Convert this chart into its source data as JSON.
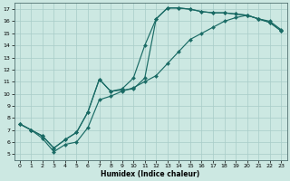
{
  "bg_color": "#cce8e2",
  "grid_color": "#a8ccc8",
  "line_color": "#1a6b65",
  "xlabel": "Humidex (Indice chaleur)",
  "xlim": [
    -0.5,
    23.5
  ],
  "ylim": [
    4.5,
    17.5
  ],
  "xticks": [
    0,
    1,
    2,
    3,
    4,
    5,
    6,
    7,
    8,
    9,
    10,
    11,
    12,
    13,
    14,
    15,
    16,
    17,
    18,
    19,
    20,
    21,
    22,
    23
  ],
  "yticks": [
    5,
    6,
    7,
    8,
    9,
    10,
    11,
    12,
    13,
    14,
    15,
    16,
    17
  ],
  "line1_x": [
    0,
    1,
    2,
    3,
    4,
    5,
    6,
    7,
    8,
    9,
    10,
    11,
    12,
    13,
    14,
    15,
    16,
    17,
    18,
    19,
    20,
    21,
    22,
    23
  ],
  "line1_y": [
    7.5,
    7.0,
    6.3,
    5.2,
    5.8,
    6.0,
    7.2,
    9.5,
    9.8,
    10.2,
    10.5,
    11.0,
    11.5,
    12.5,
    13.5,
    14.5,
    15.0,
    15.5,
    16.0,
    16.3,
    16.5,
    16.2,
    16.0,
    15.3
  ],
  "line2_x": [
    0,
    1,
    2,
    3,
    4,
    5,
    6,
    7,
    8,
    9,
    10,
    11,
    12,
    13,
    14,
    15,
    16,
    17,
    18,
    19,
    20,
    21,
    22,
    23
  ],
  "line2_y": [
    7.5,
    7.0,
    6.5,
    5.5,
    6.2,
    6.8,
    8.5,
    11.2,
    10.2,
    10.3,
    10.4,
    11.3,
    16.2,
    17.1,
    17.1,
    17.0,
    16.8,
    16.7,
    16.7,
    16.6,
    16.5,
    16.2,
    15.9,
    15.2
  ],
  "line3_x": [
    0,
    1,
    2,
    3,
    4,
    5,
    6,
    7,
    8,
    9,
    10,
    11,
    12,
    13,
    14,
    15,
    16,
    17,
    18,
    19,
    20,
    21,
    22,
    23
  ],
  "line3_y": [
    7.5,
    7.0,
    6.5,
    5.5,
    6.2,
    6.8,
    8.5,
    11.2,
    10.2,
    10.4,
    11.3,
    14.0,
    16.2,
    17.1,
    17.1,
    17.0,
    16.8,
    16.7,
    16.7,
    16.6,
    16.5,
    16.2,
    15.9,
    15.2
  ],
  "markersize": 2.2,
  "linewidth": 0.85
}
